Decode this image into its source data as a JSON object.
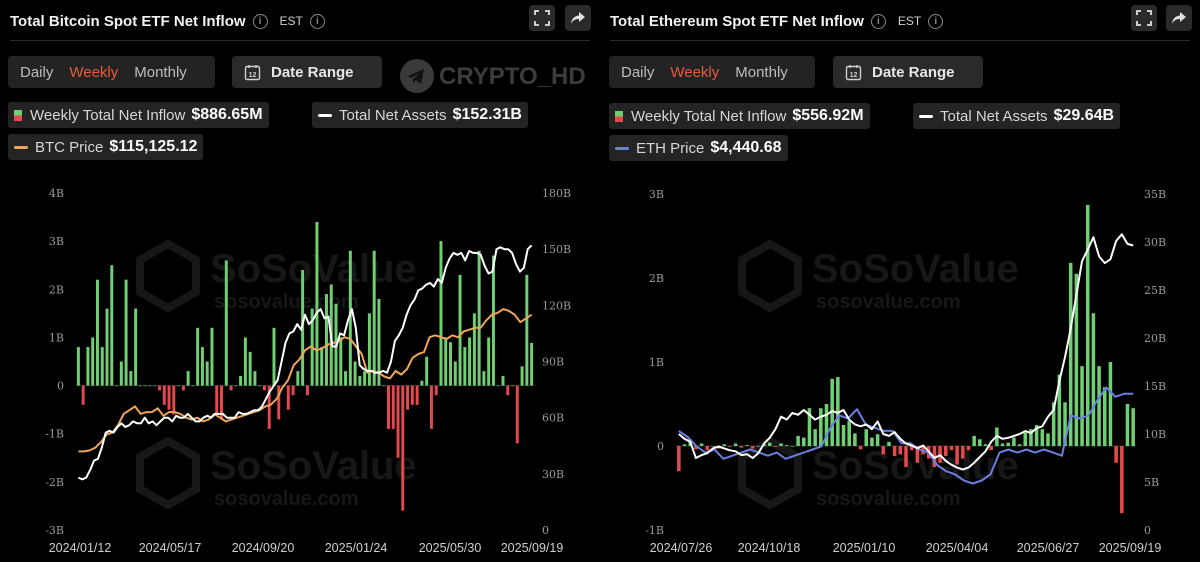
{
  "panels": {
    "btc": {
      "title": "Total Bitcoin Spot ETF Net Inflow",
      "timezone": "EST",
      "periods": [
        "Daily",
        "Weekly",
        "Monthly"
      ],
      "active_period": "Weekly",
      "date_range_label": "Date Range",
      "date_icon_text": "12",
      "legend": {
        "inflow_label": "Weekly Total Net Inflow",
        "inflow_value": "$886.65M",
        "assets_label": "Total Net Assets",
        "assets_value": "$152.31B",
        "price_label": "BTC Price",
        "price_value": "$115,125.12"
      }
    },
    "eth": {
      "title": "Total Ethereum Spot ETF Net Inflow",
      "timezone": "EST",
      "periods": [
        "Daily",
        "Weekly",
        "Monthly"
      ],
      "active_period": "Weekly",
      "date_range_label": "Date Range",
      "date_icon_text": "12",
      "legend": {
        "inflow_label": "Weekly Total Net Inflow",
        "inflow_value": "$556.92M",
        "assets_label": "Total Net Assets",
        "assets_value": "$29.64B",
        "price_label": "ETH Price",
        "price_value": "$4,440.68"
      }
    }
  },
  "watermark": {
    "text": "SoSoValue",
    "url": "sosovalue.com",
    "overlay": "CRYPTO_HD"
  },
  "colors": {
    "inflow": "#6fcf73",
    "outflow": "#e5484d",
    "assets_line": "#ffffff",
    "btc_price": "#f0a45a",
    "eth_price": "#6b7fe0",
    "active": "#e85a3c"
  },
  "icons": [
    "info-icon",
    "fullscreen-icon",
    "share-icon",
    "calendar-icon",
    "telegram-icon"
  ],
  "chart_data": [
    {
      "type": "bar",
      "x_tick_labels": [
        "2024/01/12",
        "2024/05/17",
        "2024/09/20",
        "2025/01/24",
        "2025/05/30",
        "2025/09/19"
      ],
      "y_left_ticks": [
        "4B",
        "3B",
        "2B",
        "1B",
        "0",
        "-1B",
        "-2B",
        "-3B"
      ],
      "y_left_range": [
        -3,
        4
      ],
      "y_right_ticks": [
        "180B",
        "150B",
        "120B",
        "90B",
        "60B",
        "30B",
        "0"
      ],
      "y_right_range": [
        0,
        180
      ],
      "series": [
        {
          "name": "Weekly Total Net Inflow",
          "kind": "bar",
          "unit": "B",
          "values": [
            0.8,
            -0.4,
            0.8,
            1.0,
            2.2,
            0.8,
            1.6,
            2.5,
            0.0,
            0.5,
            2.2,
            0.3,
            1.6,
            0.0,
            0.0,
            0.0,
            0.0,
            -0.1,
            -0.4,
            -0.5,
            -0.6,
            0.0,
            -0.1,
            0.3,
            0.0,
            1.2,
            0.8,
            0.5,
            1.2,
            -0.6,
            -0.7,
            2.6,
            -0.1,
            0.0,
            0.2,
            1.0,
            0.7,
            0.3,
            0.0,
            -0.1,
            -0.9,
            1.2,
            -0.7,
            0.0,
            -0.5,
            -0.2,
            0.3,
            2.4,
            -0.2,
            1.6,
            3.4,
            0.8,
            1.9,
            2.1,
            1.7,
            1.0,
            0.3,
            2.8,
            0.5,
            0.2,
            0.3,
            1.5,
            2.8,
            1.8,
            0.0,
            -0.9,
            -0.9,
            -1.5,
            -2.6,
            -0.5,
            -0.4,
            -0.4,
            0.1,
            0.6,
            -0.9,
            -0.2,
            3.0,
            1.0,
            0.9,
            0.5,
            2.3,
            0.8,
            1.0,
            1.5,
            2.8,
            0.3,
            1.0,
            2.7,
            0.0,
            0.2,
            -0.2,
            0.0,
            -1.2,
            0.4,
            2.3,
            0.886
          ]
        },
        {
          "name": "Total Net Assets",
          "kind": "line",
          "unit": "B",
          "values": [
            28,
            27,
            28,
            32,
            37,
            38,
            44,
            52,
            53,
            52,
            55,
            57,
            55,
            56,
            58,
            57,
            57,
            60,
            57,
            58,
            56,
            58,
            60,
            60,
            58,
            61,
            60,
            60,
            62,
            60,
            58,
            58,
            60,
            61,
            60,
            62,
            62,
            62,
            60,
            60,
            60,
            63,
            62,
            62,
            63,
            64,
            64,
            66,
            70,
            74,
            77,
            80,
            90,
            100,
            105,
            106,
            110,
            107,
            115,
            110,
            112,
            116,
            118,
            113,
            114,
            98,
            98,
            105,
            104,
            112,
            118,
            108,
            88,
            86,
            85,
            85,
            84,
            84,
            85,
            84,
            90,
            101,
            104,
            108,
            115,
            120,
            123,
            128,
            129,
            131,
            132,
            130,
            134,
            132,
            140,
            145,
            148,
            147,
            148,
            144,
            149,
            148,
            148,
            147,
            141,
            137,
            138,
            150,
            151,
            150,
            150,
            148,
            142,
            138,
            140,
            150,
            152
          ]
        },
        {
          "name": "BTC Price",
          "kind": "line",
          "unit": "USD",
          "values": [
            42000,
            42000,
            42500,
            44000,
            47000,
            51000,
            52000,
            56000,
            62000,
            64000,
            66000,
            62000,
            63000,
            63000,
            65000,
            61000,
            63000,
            63000,
            62000,
            60000,
            59000,
            60000,
            58000,
            59000,
            62000,
            60000,
            58000,
            59000,
            60000,
            61000,
            62000,
            63000,
            64000,
            66000,
            67000,
            70000,
            76000,
            80000,
            88000,
            91000,
            96000,
            98000,
            96000,
            97000,
            99000,
            100000,
            101000,
            103000,
            102000,
            98000,
            94000,
            84000,
            85000,
            84000,
            82000,
            81000,
            85000,
            83000,
            86000,
            92000,
            94000,
            95000,
            103000,
            104000,
            103000,
            102000,
            104000,
            103000,
            106000,
            107000,
            108000,
            108000,
            112000,
            115000,
            116000,
            118000,
            117000,
            115000,
            111000,
            113000,
            115000
          ]
        }
      ]
    },
    {
      "type": "bar",
      "x_tick_labels": [
        "2024/07/26",
        "2024/10/18",
        "2025/01/10",
        "2025/04/04",
        "2025/06/27",
        "2025/09/19"
      ],
      "y_left_ticks": [
        "3B",
        "2B",
        "1B",
        "0",
        "-1B"
      ],
      "y_left_range": [
        -1,
        3
      ],
      "y_right_ticks": [
        "35B",
        "30B",
        "25B",
        "20B",
        "15B",
        "10B",
        "5B",
        "0"
      ],
      "y_right_range": [
        0,
        35
      ],
      "series": [
        {
          "name": "Weekly Total Net Inflow",
          "kind": "bar",
          "unit": "B",
          "values": [
            -0.3,
            0.02,
            0.08,
            -0.04,
            0.03,
            -0.05,
            0.0,
            -0.03,
            0.02,
            -0.01,
            0.03,
            -0.02,
            0.01,
            -0.03,
            0.0,
            0.02,
            0.04,
            -0.01,
            0.03,
            0.01,
            0.0,
            0.12,
            0.1,
            0.45,
            0.2,
            0.45,
            0.5,
            0.8,
            0.82,
            0.25,
            0.3,
            0.15,
            -0.04,
            0.2,
            0.1,
            0.14,
            -0.1,
            0.05,
            -0.12,
            -0.1,
            -0.25,
            -0.05,
            -0.2,
            -0.1,
            -0.15,
            -0.25,
            -0.2,
            -0.12,
            -0.05,
            -0.22,
            -0.15,
            -0.05,
            0.12,
            0.08,
            0.02,
            -0.05,
            0.22,
            0.03,
            0.04,
            0.1,
            0.02,
            0.16,
            0.2,
            0.25,
            0.2,
            0.15,
            0.52,
            0.85,
            0.52,
            2.18,
            2.05,
            0.95,
            2.87,
            1.58,
            0.95,
            0.7,
            1.0,
            -0.2,
            -0.8,
            0.5,
            0.45
          ]
        },
        {
          "name": "Total Net Assets",
          "kind": "line",
          "unit": "B",
          "values": [
            10,
            9.5,
            9.2,
            7.5,
            7.8,
            8.0,
            8.5,
            8.7,
            8.5,
            8.3,
            8.2,
            7.8,
            7.9,
            7.5,
            8.0,
            9.0,
            9.6,
            10.5,
            11.8,
            11.5,
            12.2,
            12.0,
            12.5,
            12.0,
            11.5,
            11.8,
            12.0,
            12.4,
            12.2,
            12.5,
            11.5,
            11.0,
            10.8,
            11.0,
            10.5,
            11.3,
            10.0,
            9.8,
            10.2,
            9.5,
            9.0,
            8.8,
            8.5,
            8.8,
            8.2,
            7.5,
            7.8,
            7.2,
            6.8,
            6.5,
            6.3,
            6.5,
            7.0,
            7.6,
            8.2,
            9.2,
            9.8,
            9.5,
            9.6,
            9.8,
            10.0,
            10.3,
            10.1,
            10.6,
            10.8,
            11.8,
            12.5,
            15.5,
            18.0,
            21.0,
            24.5,
            28.0,
            29.2,
            30.5,
            28.5,
            27.8,
            28.2,
            30.1,
            30.8,
            29.8,
            29.64
          ]
        },
        {
          "name": "ETH Price",
          "kind": "line",
          "unit": "USD",
          "values": [
            3200,
            3000,
            2700,
            2500,
            2600,
            2300,
            2400,
            2500,
            2600,
            2500,
            2400,
            2500,
            2300,
            2400,
            2500,
            2600,
            2700,
            3300,
            3700,
            3600,
            3900,
            3400,
            3300,
            3200,
            3200,
            2800,
            2800,
            2600,
            2500,
            2100,
            1900,
            1800,
            1600,
            1500,
            1600,
            1800,
            2500,
            2600,
            2500,
            2600,
            2500,
            2600,
            2500,
            2400,
            3700,
            3600,
            3700,
            4200,
            4600,
            4300,
            4400,
            4400
          ]
        }
      ]
    }
  ]
}
